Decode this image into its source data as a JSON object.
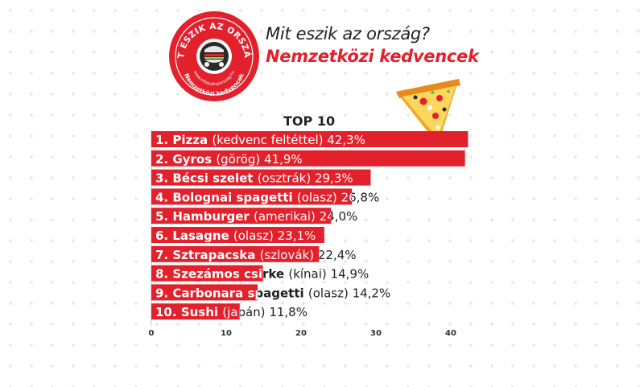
{
  "header": {
    "title": "Mit eszik az ország?",
    "subtitle": "Nemzetközi kedvencek"
  },
  "badge": {
    "top_text": "MIT ESZIK AZ ORSZÁG?",
    "url_text": "www.miteszikazorszag.hu",
    "bottom_text": "Nemzetközi kedvencek"
  },
  "colors": {
    "accent": "#e3212d",
    "text": "#222222"
  },
  "chart_data": {
    "type": "bar",
    "orientation": "horizontal",
    "title": "TOP 10",
    "xlim": [
      0,
      43
    ],
    "xticks": [
      0,
      10,
      20,
      30,
      40
    ],
    "bars": [
      {
        "rank": "1.",
        "name": "Pizza",
        "note": "(kedvenc feltéttel)",
        "value": 42.3,
        "value_label": "42,3%"
      },
      {
        "rank": "2.",
        "name": "Gyros",
        "note": "(görög)",
        "value": 41.9,
        "value_label": "41,9%"
      },
      {
        "rank": "3.",
        "name": "Bécsi szelet",
        "note": "(osztrák)",
        "value": 29.3,
        "value_label": "29,3%"
      },
      {
        "rank": "4.",
        "name": "Bolognai spagetti",
        "note": "(olasz)",
        "value": 26.8,
        "value_label": "26,8%"
      },
      {
        "rank": "5.",
        "name": "Hamburger",
        "note": "(amerikai)",
        "value": 24.0,
        "value_label": "24,0%"
      },
      {
        "rank": "6.",
        "name": "Lasagne",
        "note": "(olasz)",
        "value": 23.1,
        "value_label": "23,1%"
      },
      {
        "rank": "7.",
        "name": "Sztrapacska",
        "note": "(szlovák)",
        "value": 22.4,
        "value_label": "22,4%"
      },
      {
        "rank": "8.",
        "name": "Szezámos csirke",
        "note": "(kínai)",
        "value": 14.9,
        "value_label": "14,9%"
      },
      {
        "rank": "9.",
        "name": "Carbonara spagetti",
        "note": "(olasz)",
        "value": 14.2,
        "value_label": "14,2%"
      },
      {
        "rank": "10.",
        "name": "Sushi",
        "note": "(japán)",
        "value": 11.8,
        "value_label": "11,8%"
      }
    ]
  }
}
